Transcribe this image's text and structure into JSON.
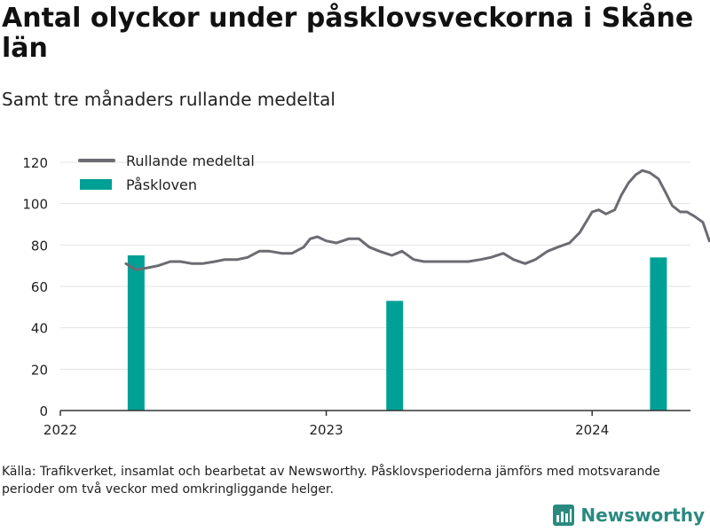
{
  "title": "Antal olyckor under påsklovsveckorna i Skåne län",
  "subtitle": "Samt tre månaders rullande medeltal",
  "source": "Källa: Trafikverket, insamlat och bearbetat av Newsworthy. Påsklovsperioderna jämförs med motsvarande perioder om två veckor med omkringliggande helger.",
  "brand": {
    "name": "Newsworthy",
    "icon": "bar-chart-logo-icon"
  },
  "colors": {
    "line": "#6b6b72",
    "bar": "#00a096",
    "grid": "#e3e3e3",
    "axis": "#333333",
    "brand": "#2a8a80"
  },
  "chart_data": {
    "type": "line+bar",
    "title": "Antal olyckor under påsklovsveckorna i Skåne län",
    "subtitle": "Samt tre månaders rullande medeltal",
    "ylim": [
      0,
      120
    ],
    "yticks": [
      0,
      20,
      40,
      60,
      80,
      100,
      120
    ],
    "xlim": [
      "2022-01-01",
      "2024-05-15"
    ],
    "xticks": [
      {
        "date": "2022-01-01",
        "label": "2022"
      },
      {
        "date": "2023-01-01",
        "label": "2023"
      },
      {
        "date": "2024-01-01",
        "label": "2024"
      }
    ],
    "grid": "horizontal",
    "legend_position": "top-left",
    "legend": [
      {
        "label": "Rullande medeltal",
        "kind": "line"
      },
      {
        "label": "Påskloven",
        "kind": "bar"
      }
    ],
    "series": [
      {
        "name": "Rullande medeltal",
        "kind": "line",
        "points": [
          [
            "2022-04-01",
            71
          ],
          [
            "2022-04-15",
            68
          ],
          [
            "2022-05-01",
            69
          ],
          [
            "2022-05-15",
            70
          ],
          [
            "2022-06-01",
            72
          ],
          [
            "2022-06-15",
            72
          ],
          [
            "2022-07-01",
            71
          ],
          [
            "2022-07-15",
            71
          ],
          [
            "2022-08-01",
            72
          ],
          [
            "2022-08-15",
            73
          ],
          [
            "2022-09-01",
            73
          ],
          [
            "2022-09-15",
            74
          ],
          [
            "2022-10-01",
            77
          ],
          [
            "2022-10-15",
            77
          ],
          [
            "2022-11-01",
            76
          ],
          [
            "2022-11-15",
            76
          ],
          [
            "2022-12-01",
            79
          ],
          [
            "2022-12-10",
            83
          ],
          [
            "2022-12-20",
            84
          ],
          [
            "2023-01-01",
            82
          ],
          [
            "2023-01-15",
            81
          ],
          [
            "2023-02-01",
            83
          ],
          [
            "2023-02-15",
            83
          ],
          [
            "2023-03-01",
            79
          ],
          [
            "2023-03-15",
            77
          ],
          [
            "2023-04-01",
            75
          ],
          [
            "2023-04-15",
            77
          ],
          [
            "2023-05-01",
            73
          ],
          [
            "2023-05-15",
            72
          ],
          [
            "2023-06-01",
            72
          ],
          [
            "2023-06-15",
            72
          ],
          [
            "2023-07-01",
            72
          ],
          [
            "2023-07-15",
            72
          ],
          [
            "2023-08-01",
            73
          ],
          [
            "2023-08-15",
            74
          ],
          [
            "2023-09-01",
            76
          ],
          [
            "2023-09-15",
            73
          ],
          [
            "2023-10-01",
            71
          ],
          [
            "2023-10-15",
            73
          ],
          [
            "2023-11-01",
            77
          ],
          [
            "2023-11-15",
            79
          ],
          [
            "2023-12-01",
            81
          ],
          [
            "2023-12-15",
            86
          ],
          [
            "2024-01-01",
            96
          ],
          [
            "2024-01-10",
            97
          ],
          [
            "2024-01-20",
            95
          ],
          [
            "2024-02-01",
            97
          ],
          [
            "2024-02-10",
            104
          ],
          [
            "2024-02-20",
            110
          ],
          [
            "2024-03-01",
            114
          ],
          [
            "2024-03-10",
            116
          ],
          [
            "2024-03-20",
            115
          ],
          [
            "2024-04-01",
            112
          ],
          [
            "2024-04-10",
            106
          ],
          [
            "2024-04-20",
            99
          ],
          [
            "2024-05-01",
            96
          ],
          [
            "2024-05-10",
            96
          ],
          [
            "2024-05-20",
            94
          ],
          [
            "2024-06-01",
            91
          ],
          [
            "2024-06-10",
            82
          ]
        ]
      },
      {
        "name": "Påskloven",
        "kind": "bar",
        "points": [
          [
            "2022-04-15",
            75
          ],
          [
            "2023-04-05",
            53
          ],
          [
            "2024-04-01",
            74
          ]
        ]
      }
    ]
  }
}
